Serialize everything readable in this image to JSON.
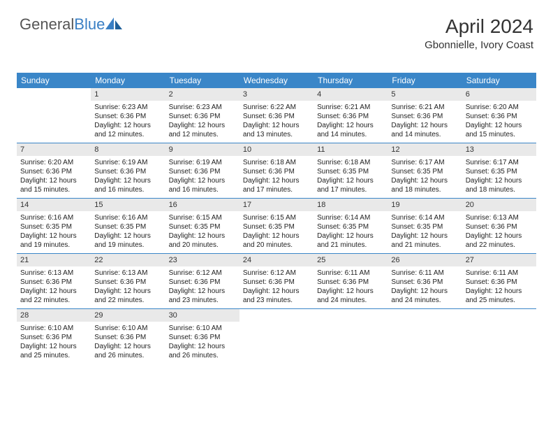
{
  "logo": {
    "general": "General",
    "blue": "Blue"
  },
  "brand_colors": {
    "header_bg": "#3a86c8",
    "num_bg": "#e9e9e9",
    "logo_blue": "#3a7fc4"
  },
  "title": "April 2024",
  "location": "Gbonnielle, Ivory Coast",
  "daynames": [
    "Sunday",
    "Monday",
    "Tuesday",
    "Wednesday",
    "Thursday",
    "Friday",
    "Saturday"
  ],
  "first_day_index": 1,
  "days": [
    {
      "n": 1,
      "sr": "6:23 AM",
      "ss": "6:36 PM",
      "dl": "12 hours and 12 minutes."
    },
    {
      "n": 2,
      "sr": "6:23 AM",
      "ss": "6:36 PM",
      "dl": "12 hours and 12 minutes."
    },
    {
      "n": 3,
      "sr": "6:22 AM",
      "ss": "6:36 PM",
      "dl": "12 hours and 13 minutes."
    },
    {
      "n": 4,
      "sr": "6:21 AM",
      "ss": "6:36 PM",
      "dl": "12 hours and 14 minutes."
    },
    {
      "n": 5,
      "sr": "6:21 AM",
      "ss": "6:36 PM",
      "dl": "12 hours and 14 minutes."
    },
    {
      "n": 6,
      "sr": "6:20 AM",
      "ss": "6:36 PM",
      "dl": "12 hours and 15 minutes."
    },
    {
      "n": 7,
      "sr": "6:20 AM",
      "ss": "6:36 PM",
      "dl": "12 hours and 15 minutes."
    },
    {
      "n": 8,
      "sr": "6:19 AM",
      "ss": "6:36 PM",
      "dl": "12 hours and 16 minutes."
    },
    {
      "n": 9,
      "sr": "6:19 AM",
      "ss": "6:36 PM",
      "dl": "12 hours and 16 minutes."
    },
    {
      "n": 10,
      "sr": "6:18 AM",
      "ss": "6:36 PM",
      "dl": "12 hours and 17 minutes."
    },
    {
      "n": 11,
      "sr": "6:18 AM",
      "ss": "6:35 PM",
      "dl": "12 hours and 17 minutes."
    },
    {
      "n": 12,
      "sr": "6:17 AM",
      "ss": "6:35 PM",
      "dl": "12 hours and 18 minutes."
    },
    {
      "n": 13,
      "sr": "6:17 AM",
      "ss": "6:35 PM",
      "dl": "12 hours and 18 minutes."
    },
    {
      "n": 14,
      "sr": "6:16 AM",
      "ss": "6:35 PM",
      "dl": "12 hours and 19 minutes."
    },
    {
      "n": 15,
      "sr": "6:16 AM",
      "ss": "6:35 PM",
      "dl": "12 hours and 19 minutes."
    },
    {
      "n": 16,
      "sr": "6:15 AM",
      "ss": "6:35 PM",
      "dl": "12 hours and 20 minutes."
    },
    {
      "n": 17,
      "sr": "6:15 AM",
      "ss": "6:35 PM",
      "dl": "12 hours and 20 minutes."
    },
    {
      "n": 18,
      "sr": "6:14 AM",
      "ss": "6:35 PM",
      "dl": "12 hours and 21 minutes."
    },
    {
      "n": 19,
      "sr": "6:14 AM",
      "ss": "6:35 PM",
      "dl": "12 hours and 21 minutes."
    },
    {
      "n": 20,
      "sr": "6:13 AM",
      "ss": "6:36 PM",
      "dl": "12 hours and 22 minutes."
    },
    {
      "n": 21,
      "sr": "6:13 AM",
      "ss": "6:36 PM",
      "dl": "12 hours and 22 minutes."
    },
    {
      "n": 22,
      "sr": "6:13 AM",
      "ss": "6:36 PM",
      "dl": "12 hours and 22 minutes."
    },
    {
      "n": 23,
      "sr": "6:12 AM",
      "ss": "6:36 PM",
      "dl": "12 hours and 23 minutes."
    },
    {
      "n": 24,
      "sr": "6:12 AM",
      "ss": "6:36 PM",
      "dl": "12 hours and 23 minutes."
    },
    {
      "n": 25,
      "sr": "6:11 AM",
      "ss": "6:36 PM",
      "dl": "12 hours and 24 minutes."
    },
    {
      "n": 26,
      "sr": "6:11 AM",
      "ss": "6:36 PM",
      "dl": "12 hours and 24 minutes."
    },
    {
      "n": 27,
      "sr": "6:11 AM",
      "ss": "6:36 PM",
      "dl": "12 hours and 25 minutes."
    },
    {
      "n": 28,
      "sr": "6:10 AM",
      "ss": "6:36 PM",
      "dl": "12 hours and 25 minutes."
    },
    {
      "n": 29,
      "sr": "6:10 AM",
      "ss": "6:36 PM",
      "dl": "12 hours and 26 minutes."
    },
    {
      "n": 30,
      "sr": "6:10 AM",
      "ss": "6:36 PM",
      "dl": "12 hours and 26 minutes."
    }
  ],
  "labels": {
    "sunrise": "Sunrise:",
    "sunset": "Sunset:",
    "daylight": "Daylight:"
  }
}
